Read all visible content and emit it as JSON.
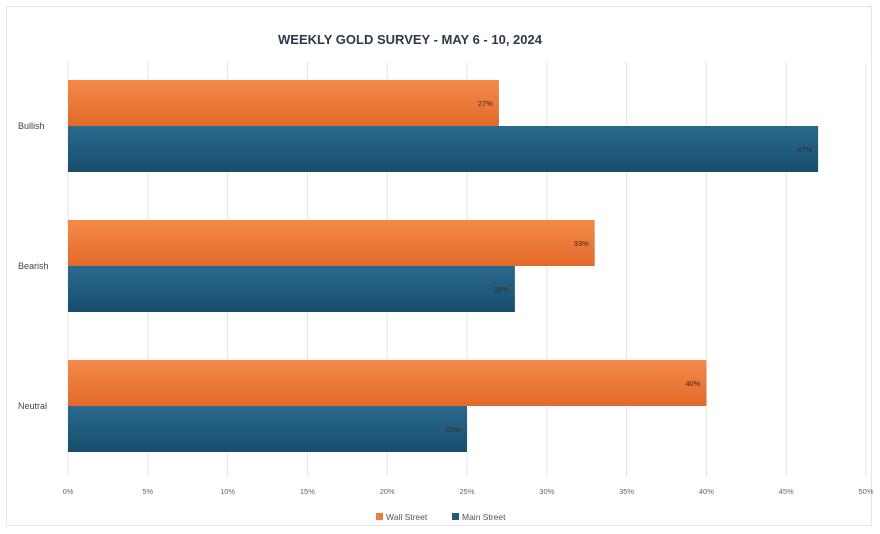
{
  "chart_data": {
    "type": "bar",
    "orientation": "horizontal",
    "title": "WEEKLY GOLD SURVEY - MAY 6 - 10, 2024",
    "categories": [
      "Bullish",
      "Bearish",
      "Neutral"
    ],
    "series": [
      {
        "name": "Wall Street",
        "color": "#ef7a3a",
        "values": [
          27,
          33,
          40
        ],
        "labels": [
          "27%",
          "33%",
          "40%"
        ]
      },
      {
        "name": "Main Street",
        "color": "#1f5a7e",
        "values": [
          47,
          28,
          25
        ],
        "labels": [
          "47%",
          "28%",
          "25%"
        ]
      }
    ],
    "xlim": [
      0,
      50
    ],
    "xticks": [
      0,
      5,
      10,
      15,
      20,
      25,
      30,
      35,
      40,
      45,
      50
    ],
    "xtick_labels": [
      "0%",
      "5%",
      "10%",
      "15%",
      "20%",
      "25%",
      "30%",
      "35%",
      "40%",
      "45%",
      "50%"
    ],
    "grid": true,
    "legend_position": "bottom-center"
  }
}
